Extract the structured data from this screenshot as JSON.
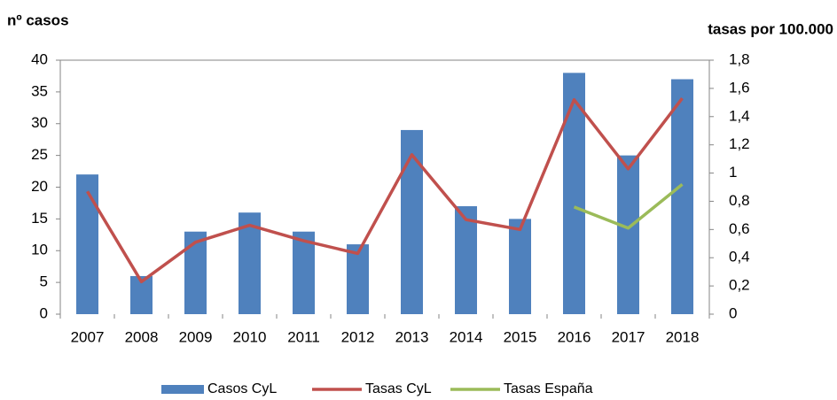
{
  "chart_data": {
    "type": "bar",
    "y_label": "nº casos",
    "y2_label": "tasas por 100.000",
    "categories": [
      "2007",
      "2008",
      "2009",
      "2010",
      "2011",
      "2012",
      "2013",
      "2014",
      "2015",
      "2016",
      "2017",
      "2018"
    ],
    "series": [
      {
        "name": "Casos CyL",
        "type": "bar",
        "color": "#4f81bd",
        "values": [
          22,
          6,
          13,
          16,
          13,
          11,
          29,
          17,
          15,
          38,
          25,
          37
        ]
      },
      {
        "name": "Tasas CyL",
        "type": "line",
        "axis": "y2",
        "color": "#c0504d",
        "values": [
          0.87,
          0.23,
          0.51,
          0.63,
          0.52,
          0.43,
          1.13,
          0.67,
          0.6,
          1.52,
          1.03,
          1.53
        ]
      },
      {
        "name": "Tasas España",
        "type": "line",
        "axis": "y2",
        "color": "#9bbb59",
        "values": [
          null,
          null,
          null,
          null,
          null,
          null,
          null,
          null,
          null,
          0.76,
          0.61,
          0.92
        ]
      }
    ],
    "ylim": [
      0,
      40
    ],
    "yticks": [
      0,
      5,
      10,
      15,
      20,
      25,
      30,
      35,
      40
    ],
    "y2lim": [
      0,
      1.8
    ],
    "y2ticks": [
      0,
      {
        "value": 0.2,
        "label": "0,2"
      },
      {
        "value": 0.4,
        "label": "0,4"
      },
      {
        "value": 0.6,
        "label": "0,6"
      },
      {
        "value": 0.8,
        "label": "0,8"
      },
      1,
      {
        "value": 1.2,
        "label": "1,2"
      },
      {
        "value": 1.4,
        "label": "1,4"
      },
      {
        "value": 1.6,
        "label": "1,6"
      },
      {
        "value": 1.8,
        "label": "1,8"
      }
    ],
    "grid": false,
    "legend": "bottom"
  }
}
